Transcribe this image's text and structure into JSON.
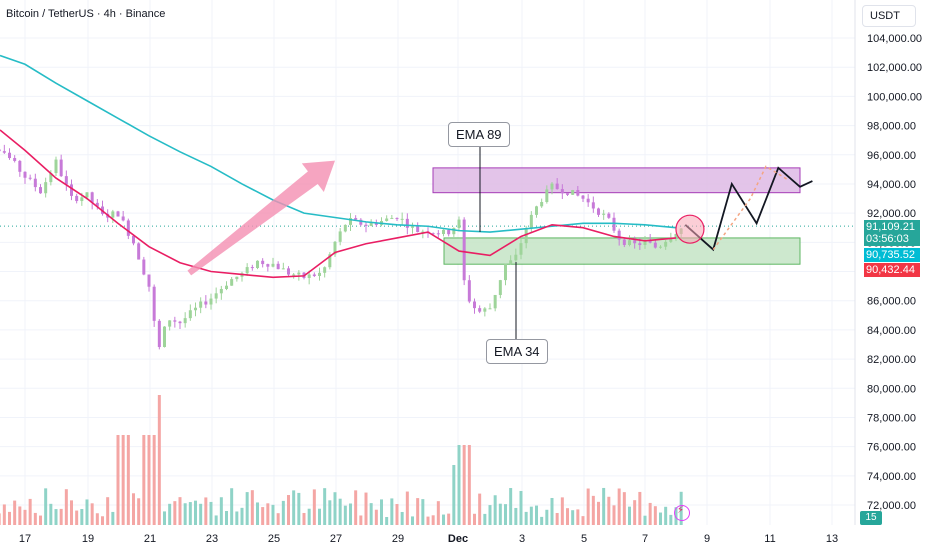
{
  "header": {
    "symbol_title": "Bitcoin / TetherUS · 4h · Binance",
    "currency": "USDT"
  },
  "price_tags": [
    {
      "price": "91,109.21",
      "sub": "03:56:03",
      "color": "#26a69a",
      "value": 91109.21
    },
    {
      "price": "90,735.52",
      "color": "#00bcd4",
      "value": 90735.52
    },
    {
      "price": "90,432.44",
      "color": "#f23645",
      "value": 90432.44
    }
  ],
  "annotations": {
    "ema89_label": "EMA 89",
    "ema34_label": "EMA 34"
  },
  "volume_badge": "15",
  "colors": {
    "up": "#26a69a",
    "up_light": "#a5d6a7",
    "down": "#ef5350",
    "down_light": "#f7a9a8",
    "candle_up": "#9ed49a",
    "candle_down": "#c77ad8",
    "ema89": "#26bcc6",
    "ema34": "#e91e63",
    "resistance_zone": "#e1bee7",
    "support_zone": "#c8e6c9",
    "arrow": "#f48fb1"
  },
  "icons": [
    "replay-icon",
    "trend-arrow-icon",
    "prediction-path-icon"
  ],
  "chart_data": {
    "type": "candlestick",
    "symbol": "BTCUSDT",
    "interval": "4h",
    "exchange": "Binance",
    "x_ticks": [
      "17",
      "19",
      "21",
      "23",
      "25",
      "27",
      "29",
      "Dec",
      "3",
      "5",
      "7",
      "9",
      "11",
      "13"
    ],
    "y_ticks": [
      "104,000.00",
      "102,000.00",
      "100,000.00",
      "98,000.00",
      "96,000.00",
      "94,000.00",
      "92,000.00",
      "90,000.00",
      "88,000.00",
      "86,000.00",
      "84,000.00",
      "82,000.00",
      "80,000.00",
      "78,000.00",
      "76,000.00",
      "74,000.00",
      "72,000.00"
    ],
    "ylim": [
      71000,
      105000
    ],
    "zones": [
      {
        "label": "resistance",
        "from": 93400,
        "to": 95100,
        "start_day": 29.2,
        "end_day": 12.5
      },
      {
        "label": "support",
        "from": 88500,
        "to": 90300,
        "start_day": 29.5,
        "end_day": 12.5
      }
    ],
    "ema89": [
      [
        -17.5,
        102800
      ],
      [
        17,
        102200
      ],
      [
        18,
        100900
      ],
      [
        19,
        99700
      ],
      [
        20,
        98500
      ],
      [
        21,
        97300
      ],
      [
        22,
        96200
      ],
      [
        23,
        95200
      ],
      [
        24,
        94000
      ],
      [
        25,
        92900
      ],
      [
        26,
        92000
      ],
      [
        27,
        91700
      ],
      [
        28,
        91400
      ],
      [
        29,
        91200
      ],
      [
        30,
        91100
      ],
      [
        31,
        90800
      ],
      [
        32,
        90700
      ],
      [
        33,
        90900
      ],
      [
        34,
        91100
      ],
      [
        35,
        91300
      ],
      [
        36,
        91300
      ],
      [
        37,
        91200
      ],
      [
        38,
        91000
      ]
    ],
    "ema34": [
      [
        -17.5,
        97700
      ],
      [
        17,
        96300
      ],
      [
        18,
        94400
      ],
      [
        19,
        93000
      ],
      [
        20,
        91300
      ],
      [
        21,
        89700
      ],
      [
        22,
        88600
      ],
      [
        23,
        88000
      ],
      [
        24,
        87800
      ],
      [
        25,
        87600
      ],
      [
        26,
        87700
      ],
      [
        27,
        89300
      ],
      [
        28,
        89900
      ],
      [
        29,
        90300
      ],
      [
        30,
        90700
      ],
      [
        31,
        89400
      ],
      [
        32,
        89100
      ],
      [
        33,
        90400
      ],
      [
        34,
        91200
      ],
      [
        35,
        91000
      ],
      [
        36,
        90400
      ],
      [
        37,
        90100
      ],
      [
        38,
        90300
      ]
    ],
    "projection_solid": [
      [
        38.3,
        91200
      ],
      [
        39.2,
        89500
      ],
      [
        39.8,
        94000
      ],
      [
        40.6,
        91300
      ],
      [
        41.3,
        95100
      ],
      [
        42.0,
        93800
      ],
      [
        42.4,
        94200
      ]
    ],
    "projection_dashed": [
      [
        39.2,
        89500
      ],
      [
        40.4,
        93000
      ],
      [
        40.9,
        95200
      ],
      [
        41.6,
        94300
      ]
    ],
    "marker_circle": {
      "day": 38.45,
      "price": 90900
    },
    "trend_arrow": {
      "from": [
        22.3,
        87900
      ],
      "to": [
        27.0,
        95600
      ]
    }
  }
}
